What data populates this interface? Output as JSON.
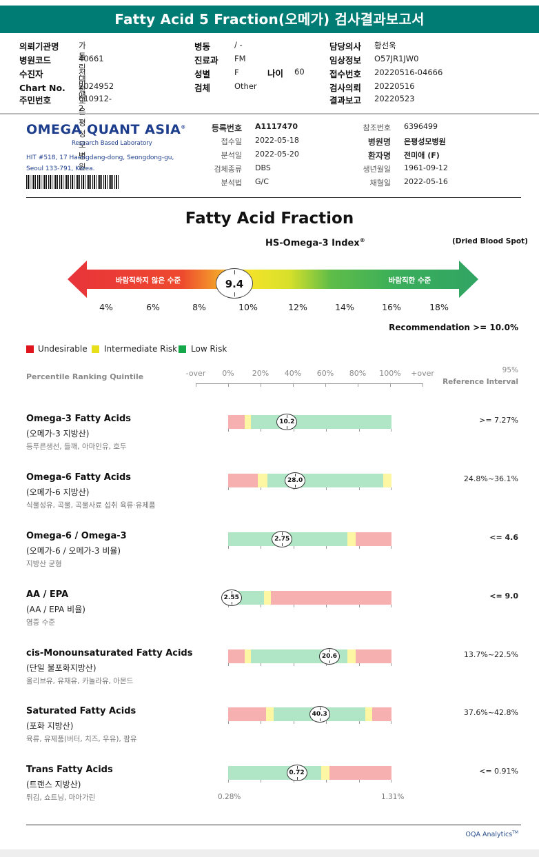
{
  "title": "Fatty Acid 5 Fraction(오메가) 검사결과보고서",
  "patient_info": {
    "col1": [
      {
        "label": "의뢰기관명",
        "value": "가톨릭대학교은평성모병원"
      },
      {
        "label": "병원코드",
        "value": "40661"
      },
      {
        "label": "수진자",
        "value": "전미애"
      },
      {
        "label": "Chart No.",
        "value": "2024952"
      },
      {
        "label": "주민번호",
        "value": "610912-2"
      }
    ],
    "col2": [
      {
        "label": "병동",
        "value": "/ -"
      },
      {
        "label": "진료과",
        "value": "FM"
      },
      {
        "label": "성별",
        "value": "F"
      },
      {
        "label": "검체",
        "value": "Other"
      }
    ],
    "age": {
      "label": "나이",
      "value": "60"
    },
    "col3": [
      {
        "label": "담당의사",
        "value": "황선욱"
      },
      {
        "label": "임상정보",
        "value": "O57JR1JW0"
      },
      {
        "label": "접수번호",
        "value": "20220516-04666"
      },
      {
        "label": "검사의뢰",
        "value": "20220516"
      },
      {
        "label": "결과보고",
        "value": "20220523"
      }
    ]
  },
  "lab": {
    "logo": "OMEGA QUANT ASIA",
    "logo_mark": "®",
    "subtitle": "Research Based Laboratory",
    "address_line1": "HIT #518, 17 Haengdang-dong, Seongdong-gu,",
    "address_line2": "Seoul 133-791, Korea."
  },
  "sample_info": {
    "left": [
      {
        "label": "등록번호",
        "value": "A1117470"
      },
      {
        "label": "접수일",
        "value": "2022-05-18"
      },
      {
        "label": "분석일",
        "value": "2022-05-20"
      },
      {
        "label": "검체종류",
        "value": "DBS"
      },
      {
        "label": "분석법",
        "value": "G/C"
      }
    ],
    "right": [
      {
        "label": "참조번호",
        "value": "6396499"
      },
      {
        "label": "병원명",
        "value": "은평성모병원"
      },
      {
        "label": "환자명",
        "value": "전미애 (F)"
      },
      {
        "label": "생년월일",
        "value": "1961-09-12"
      },
      {
        "label": "채혈일",
        "value": "2022-05-16"
      }
    ]
  },
  "section_title": "Fatty Acid Fraction",
  "index_title": "HS-Omega-3 Index",
  "index_mark": "®",
  "dbs_label": "(Dried Blood Spot)",
  "gauge": {
    "label_undesirable": "바람직하지 않은 수준",
    "label_desirable": "바람직한 수준",
    "value": "9.4",
    "ticks": [
      "4%",
      "6%",
      "8%",
      "10%",
      "12%",
      "14%",
      "16%",
      "18%"
    ]
  },
  "recommendation": "Recommendation  >= 10.0%",
  "legend": [
    {
      "label": "Undesirable",
      "color": "#e0141c"
    },
    {
      "label": "Intermediate Risk",
      "color": "#e6df1a"
    },
    {
      "label": "Low Risk",
      "color": "#15a84a"
    }
  ],
  "scale": {
    "label": "Percentile Ranking Quintile",
    "ticks": [
      "-over",
      "0%",
      "20%",
      "40%",
      "60%",
      "80%",
      "100%",
      "+over"
    ],
    "ref_95": "95%",
    "ref_interval": "Reference Interval"
  },
  "results": [
    {
      "name": "Omega-3 Fatty Acids",
      "korean": "(오메가-3 지방산)",
      "desc": "등푸른생선, 들깨, 아마인유, 호두",
      "value": "10.2",
      "position": 0.36,
      "reference": ">= 7.27%",
      "segments": [
        {
          "type": "r",
          "from": 0,
          "to": 0.1
        },
        {
          "type": "y",
          "from": 0.1,
          "to": 0.14
        },
        {
          "type": "g",
          "from": 0.14,
          "to": 1.0
        }
      ]
    },
    {
      "name": "Omega-6 Fatty Acids",
      "korean": "(오메가-6 지방산)",
      "desc": "식물성유, 곡물, 곡물사료 섭취 육류·유제품",
      "value": "28.0",
      "position": 0.41,
      "reference": "24.8%~36.1%",
      "segments": [
        {
          "type": "r",
          "from": 0,
          "to": 0.18
        },
        {
          "type": "y",
          "from": 0.18,
          "to": 0.24
        },
        {
          "type": "g",
          "from": 0.24,
          "to": 0.95
        },
        {
          "type": "y",
          "from": 0.95,
          "to": 1.0
        }
      ]
    },
    {
      "name": "Omega-6 / Omega-3",
      "korean": "(오메가-6 / 오메가-3 비율)",
      "desc": "지방산 균형",
      "value": "2.75",
      "position": 0.33,
      "reference": "<= 4.6",
      "ref_bold": true,
      "segments": [
        {
          "type": "g",
          "from": 0,
          "to": 0.73
        },
        {
          "type": "y",
          "from": 0.73,
          "to": 0.78
        },
        {
          "type": "r",
          "from": 0.78,
          "to": 1.0
        }
      ]
    },
    {
      "name": "AA / EPA",
      "korean": "(AA / EPA 비율)",
      "desc": "염증 수준",
      "value": "2.55",
      "position": 0.02,
      "reference": "<= 9.0",
      "ref_bold": true,
      "segments": [
        {
          "type": "g",
          "from": 0,
          "to": 0.22
        },
        {
          "type": "y",
          "from": 0.22,
          "to": 0.26
        },
        {
          "type": "r",
          "from": 0.26,
          "to": 1.0
        }
      ]
    },
    {
      "name": "cis-Monounsaturated Fatty Acids",
      "korean": "(단일 불포화지방산)",
      "desc": "올리브유, 유채유, 카놀라유, 아몬드",
      "value": "20.6",
      "position": 0.62,
      "reference": "13.7%~22.5%",
      "segments": [
        {
          "type": "r",
          "from": 0,
          "to": 0.1
        },
        {
          "type": "y",
          "from": 0.1,
          "to": 0.14
        },
        {
          "type": "g",
          "from": 0.14,
          "to": 0.73
        },
        {
          "type": "y",
          "from": 0.73,
          "to": 0.78
        },
        {
          "type": "r",
          "from": 0.78,
          "to": 1.0
        }
      ]
    },
    {
      "name": "Saturated Fatty Acids",
      "korean": "(포화 지방산)",
      "desc": "육류, 유제품(버터, 치즈, 우유), 팜유",
      "value": "40.3",
      "position": 0.56,
      "reference": "37.6%~42.8%",
      "segments": [
        {
          "type": "r",
          "from": 0,
          "to": 0.23
        },
        {
          "type": "y",
          "from": 0.23,
          "to": 0.28
        },
        {
          "type": "g",
          "from": 0.28,
          "to": 0.84
        },
        {
          "type": "y",
          "from": 0.84,
          "to": 0.88
        },
        {
          "type": "r",
          "from": 0.88,
          "to": 1.0
        }
      ]
    },
    {
      "name": "Trans Fatty Acids",
      "korean": "(트랜스 지방산)",
      "desc": "튀김, 쇼트닝, 마아가린",
      "value": "0.72",
      "position": 0.42,
      "reference": "<= 0.91%",
      "segments": [
        {
          "type": "g",
          "from": 0,
          "to": 0.57
        },
        {
          "type": "y",
          "from": 0.57,
          "to": 0.62
        },
        {
          "type": "r",
          "from": 0.62,
          "to": 1.0
        }
      ]
    }
  ],
  "trans_scale": {
    "min": "0.28%",
    "max": "1.31%"
  },
  "footer": {
    "brand": "OQA Analytics",
    "mark": "TM"
  }
}
